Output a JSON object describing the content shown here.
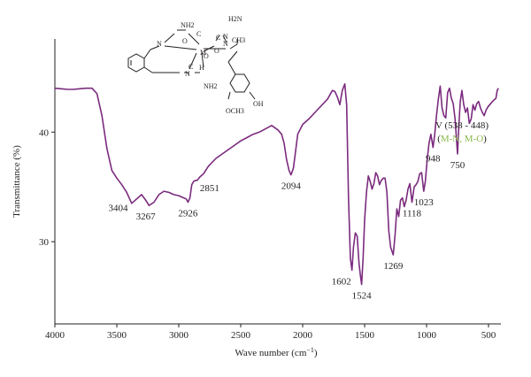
{
  "chart_data": {
    "type": "line",
    "title": "",
    "xlabel": "Wave number (cm",
    "xlabel_sup": "−1",
    "xlabel_end": ")",
    "ylabel": "Transmittance (%)",
    "xlim": [
      4000,
      400
    ],
    "ylim": [
      22.5,
      48.5
    ],
    "x_reversed": true,
    "grid": false,
    "x_ticks": [
      4000,
      3500,
      3000,
      2500,
      2000,
      1500,
      1000,
      500
    ],
    "x_tick_labels": [
      "4000",
      "3500",
      "3000",
      "2500",
      "2000",
      "1500",
      "1000",
      "500"
    ],
    "y_ticks": [
      30,
      40
    ],
    "y_tick_labels": [
      "30",
      "40"
    ],
    "line_color": "#7b2b7e",
    "series": [
      {
        "x": [
          4000,
          3950,
          3900,
          3850,
          3800,
          3750,
          3700,
          3660,
          3620,
          3580,
          3540,
          3500,
          3460,
          3420,
          3404,
          3380,
          3340,
          3300,
          3267,
          3240,
          3200,
          3160,
          3120,
          3080,
          3040,
          3000,
          2960,
          2940,
          2926,
          2910,
          2895,
          2880,
          2865,
          2851,
          2830,
          2800,
          2760,
          2700,
          2650,
          2600,
          2550,
          2500,
          2450,
          2400,
          2350,
          2300,
          2250,
          2200,
          2170,
          2150,
          2130,
          2110,
          2094,
          2075,
          2060,
          2040,
          2000,
          1950,
          1900,
          1850,
          1800,
          1760,
          1740,
          1720,
          1700,
          1680,
          1660,
          1645,
          1630,
          1615,
          1602,
          1590,
          1575,
          1560,
          1545,
          1535,
          1524,
          1512,
          1500,
          1485,
          1470,
          1455,
          1440,
          1425,
          1410,
          1395,
          1380,
          1365,
          1350,
          1335,
          1320,
          1305,
          1290,
          1269,
          1255,
          1240,
          1225,
          1210,
          1195,
          1180,
          1165,
          1150,
          1135,
          1118,
          1100,
          1085,
          1070,
          1055,
          1040,
          1023,
          1010,
          995,
          980,
          965,
          948,
          935,
          920,
          905,
          890,
          875,
          860,
          845,
          830,
          815,
          800,
          785,
          770,
          750,
          740,
          728,
          715,
          700,
          685,
          670,
          655,
          640,
          625,
          610,
          595,
          580,
          565,
          550,
          535,
          520,
          505,
          490,
          475,
          460,
          448,
          440,
          430,
          420
        ],
        "y": [
          44.0,
          43.95,
          43.9,
          43.9,
          43.95,
          44.0,
          44.0,
          43.5,
          41.5,
          38.5,
          36.5,
          35.8,
          35.2,
          34.5,
          34.1,
          33.5,
          33.9,
          34.3,
          33.8,
          33.3,
          33.6,
          34.3,
          34.6,
          34.5,
          34.3,
          34.2,
          34.0,
          33.9,
          33.6,
          34.0,
          35.2,
          35.5,
          35.6,
          35.6,
          35.9,
          36.2,
          36.9,
          37.6,
          38.0,
          38.4,
          38.8,
          39.2,
          39.5,
          39.8,
          40.0,
          40.3,
          40.6,
          40.2,
          39.8,
          39.0,
          37.5,
          36.5,
          36.1,
          36.7,
          38.0,
          39.8,
          40.7,
          41.2,
          41.8,
          42.4,
          43.0,
          43.8,
          43.7,
          43.2,
          42.5,
          43.8,
          44.4,
          42.5,
          34.0,
          28.5,
          27.4,
          29.5,
          30.8,
          30.5,
          28.0,
          27.0,
          26.1,
          28.5,
          32.0,
          34.5,
          36.0,
          35.5,
          34.8,
          35.3,
          36.3,
          36.0,
          35.2,
          35.6,
          35.8,
          35.8,
          34.5,
          31.0,
          29.5,
          28.8,
          30.5,
          33.0,
          32.3,
          33.8,
          34.0,
          33.2,
          33.8,
          34.8,
          35.3,
          33.6,
          35.0,
          35.2,
          35.5,
          36.2,
          36.3,
          34.6,
          35.5,
          37.5,
          39.0,
          39.8,
          38.6,
          39.7,
          41.5,
          43.0,
          44.2,
          42.2,
          41.5,
          41.3,
          43.6,
          44.0,
          43.1,
          42.6,
          41.2,
          38.0,
          40.5,
          42.8,
          43.8,
          42.5,
          41.8,
          42.2,
          40.8,
          41.2,
          42.5,
          42.0,
          42.6,
          42.8,
          42.2,
          41.8,
          41.5,
          42.0,
          42.3,
          42.5,
          42.7,
          42.9,
          43.0,
          43.1,
          43.8,
          44.0
        ]
      }
    ],
    "annotations": [
      {
        "text": "3404",
        "x": 3404,
        "y": 34.1,
        "pos": "below-left"
      },
      {
        "text": "3267",
        "x": 3267,
        "y": 33.3,
        "pos": "below"
      },
      {
        "text": "2926",
        "x": 2926,
        "y": 33.6,
        "pos": "below"
      },
      {
        "text": "2851",
        "x": 2851,
        "y": 35.6,
        "pos": "below-right"
      },
      {
        "text": "2094",
        "x": 2094,
        "y": 36.1,
        "pos": "below"
      },
      {
        "text": "1602",
        "x": 1602,
        "y": 27.4,
        "pos": "below-left"
      },
      {
        "text": "1524",
        "x": 1524,
        "y": 26.1,
        "pos": "below"
      },
      {
        "text": "1269",
        "x": 1269,
        "y": 28.8,
        "pos": "below"
      },
      {
        "text": "1118",
        "x": 1118,
        "y": 33.6,
        "pos": "below"
      },
      {
        "text": "1023",
        "x": 1023,
        "y": 34.6,
        "pos": "below"
      },
      {
        "text": "948",
        "x": 948,
        "y": 38.6,
        "pos": "below"
      },
      {
        "text": "750",
        "x": 750,
        "y": 38.0,
        "pos": "below"
      }
    ],
    "side_note": {
      "line1": "V (538 - 448)",
      "line2_open": "(",
      "line2_colored": "M-N, M-O",
      "line2_close": ")",
      "colored_color": "#8ab84a"
    },
    "structure_labels": [
      "NH2",
      "H2N",
      "O",
      "C",
      "N",
      "M",
      "CH3",
      "H",
      "N",
      "C",
      "NH2",
      "O",
      "OCH3",
      "OH",
      "N",
      "O",
      "C",
      "N"
    ]
  }
}
